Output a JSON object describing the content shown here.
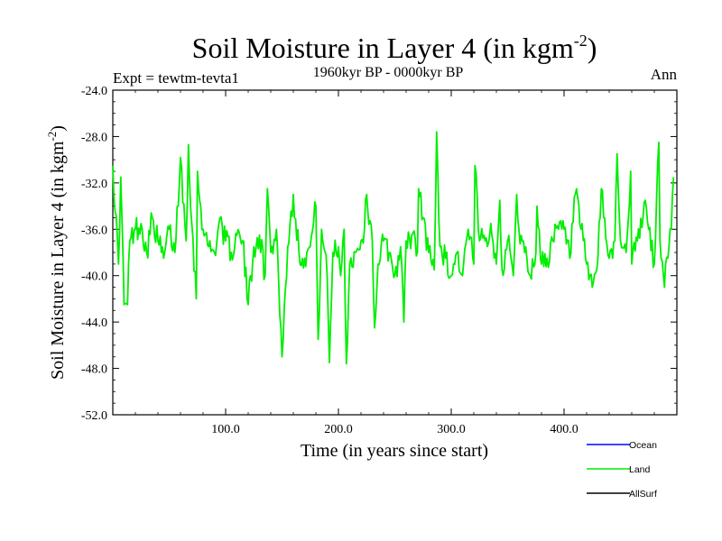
{
  "chart_data": {
    "type": "line",
    "title": "Soil Moisture in Layer 4 (in kgm",
    "title_sup": "-2",
    "title_end": ")",
    "subtitle": "1960kyr BP - 0000kyr BP",
    "left_label": "Expt = tewtm-tevta1",
    "right_label": "Ann",
    "xlabel": "Time (in years since start)",
    "ylabel": "Soil Moisture in Layer 4 (in kgm",
    "ylabel_sup": "-2",
    "ylabel_end": ")",
    "xlim": [
      0,
      500
    ],
    "ylim": [
      -52,
      -24
    ],
    "x_ticks": [
      100,
      200,
      300,
      400
    ],
    "x_tick_labels": [
      "100.0",
      "200.0",
      "300.0",
      "400.0"
    ],
    "y_ticks": [
      -52,
      -48,
      -44,
      -40,
      -36,
      -32,
      -28,
      -24
    ],
    "y_tick_labels": [
      "-52.0",
      "-48.0",
      "-44.0",
      "-40.0",
      "-36.0",
      "-32.0",
      "-28.0",
      "-24.0"
    ],
    "legend": [
      {
        "name": "Ocean",
        "color": "#0000ff"
      },
      {
        "name": "Land",
        "color": "#00ee00"
      },
      {
        "name": "AllSurf",
        "color": "#000000"
      }
    ],
    "series": [
      {
        "name": "Land",
        "color": "#00ee00",
        "x_start": 0,
        "x_step": 5,
        "values": [
          -30.5,
          -39.0,
          -42.5,
          -37.0,
          -36.0,
          -35.5,
          -38.0,
          -35.0,
          -37.0,
          -38.5,
          -36.0,
          -38.0,
          -39.5,
          -37.0,
          -35.5,
          -31.0,
          -36.0,
          -40.0,
          -38.0,
          -35.0,
          -37.0,
          -38.0,
          -36.5,
          -37.0,
          -39.0,
          -37.5,
          -36.5,
          -40.0,
          -38.0,
          -36.0,
          -35.0,
          -37.5,
          -39.0,
          -38.0,
          -42.5,
          -37.5,
          -34.0,
          -36.0,
          -40.0,
          -38.0,
          -37.5,
          -36.0,
          -39.0,
          -38.0,
          -37.0,
          -33.0,
          -37.0,
          -39.0,
          -37.0,
          -38.0,
          -40.0,
          -37.5,
          -37.0,
          -36.5,
          -38.0,
          -35.0,
          -38.0,
          -39.5,
          -37.5,
          -38.5,
          -40.0,
          -38.0,
          -35.0,
          -36.0,
          -39.0,
          -37.0,
          -37.0,
          -35.5,
          -39.0,
          -39.5,
          -37.0,
          -40.0,
          -36.0,
          -38.0,
          -40.0,
          -38.0,
          -39.0,
          -38.5,
          -37.0,
          -37.0,
          -36.0,
          -38.5,
          -37.0,
          -36.0,
          -39.0,
          -36.5,
          -38.5,
          -35.0,
          -38.5,
          -37.0,
          -37.0,
          -38.0,
          -39.0,
          -37.0,
          -35.0,
          -36.0,
          -39.0,
          -37.0,
          -39.0,
          -36.0
        ],
        "overrides": [
          [
            7,
            -31.5
          ],
          [
            13,
            -42.5
          ],
          [
            60,
            -29.8
          ],
          [
            67,
            -28.7
          ],
          [
            74,
            -42.0
          ],
          [
            85,
            -37.5
          ],
          [
            120,
            -42.5
          ],
          [
            137,
            -32.5
          ],
          [
            150,
            -47.0
          ],
          [
            160,
            -33.0
          ],
          [
            170,
            -38.5
          ],
          [
            182,
            -45.5
          ],
          [
            192,
            -47.5
          ],
          [
            202,
            -40.0
          ],
          [
            207,
            -47.6
          ],
          [
            223,
            -36.0
          ],
          [
            232,
            -44.5
          ],
          [
            258,
            -44.0
          ],
          [
            271,
            -32.5
          ],
          [
            287,
            -27.6
          ],
          [
            310,
            -40.0
          ],
          [
            321,
            -30.5
          ],
          [
            343,
            -33.5
          ],
          [
            358,
            -33.0
          ],
          [
            367,
            -38.5
          ],
          [
            376,
            -34.0
          ],
          [
            395,
            -36.0
          ],
          [
            410,
            -33.0
          ],
          [
            425,
            -41.0
          ],
          [
            433,
            -32.5
          ],
          [
            447,
            -29.5
          ],
          [
            459,
            -31.0
          ],
          [
            472,
            -33.5
          ],
          [
            484,
            -28.5
          ],
          [
            489,
            -41.0
          ],
          [
            497,
            -31.5
          ]
        ]
      }
    ]
  }
}
